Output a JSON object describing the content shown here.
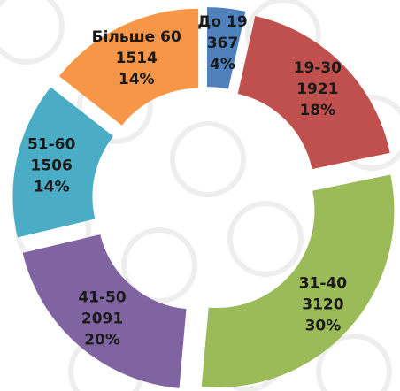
{
  "chart_data": {
    "type": "donut",
    "categories": [
      "До 19",
      "19-30",
      "31-40",
      "41-50",
      "51-60",
      "Більше 60"
    ],
    "values": [
      367,
      1921,
      3120,
      2091,
      1506,
      1514
    ],
    "percent_labels": [
      "4%",
      "18%",
      "30%",
      "20%",
      "14%",
      "14%"
    ],
    "colors": [
      "#4f81bd",
      "#c0504d",
      "#9bbb59",
      "#8064a2",
      "#4bacc6",
      "#f79646"
    ]
  }
}
